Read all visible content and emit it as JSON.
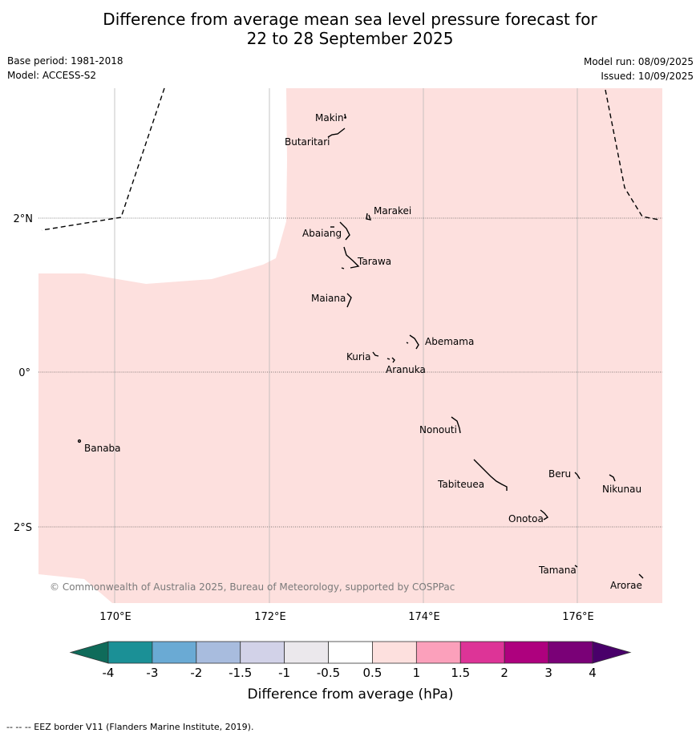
{
  "title_line1": "Difference from average mean sea level pressure forecast for",
  "title_line2": "22 to 28 September 2025",
  "base_period": "Base period: 1981-2018",
  "model": "Model: ACCESS-S2",
  "model_run": "Model run: 08/09/2025",
  "issued": "Issued: 10/09/2025",
  "lon_labels": [
    "170°E",
    "172°E",
    "174°E",
    "176°E"
  ],
  "lat_labels": [
    "2°N",
    "0°",
    "2°S"
  ],
  "islands": [
    "Makin",
    "Butaritari",
    "Marakei",
    "Abaiang",
    "Tarawa",
    "Maiana",
    "Abemama",
    "Kuria",
    "Aranuka",
    "Nonouti",
    "Banaba",
    "Beru",
    "Nikunau",
    "Tabiteuea",
    "Onotoa",
    "Tamana",
    "Arorae"
  ],
  "copyright": "© Commonwealth of Australia 2025, Bureau of Meteorology, supported by COSPPac",
  "colorbar": {
    "title": "Difference from average (hPa)",
    "ticks": [
      "-4",
      "-3",
      "-2",
      "-1.5",
      "-1",
      "-0.5",
      "0.5",
      "1",
      "1.5",
      "2",
      "3",
      "4"
    ],
    "colors": [
      "#1b9096",
      "#6aaad4",
      "#a8bcde",
      "#d2d2e8",
      "#ebe8ec",
      "#ffffff",
      "#fde0de",
      "#fba0bb",
      "#dd3497",
      "#ae017e",
      "#7a0177"
    ],
    "under_color": "#0f6b5a",
    "over_color": "#49006a"
  },
  "fill_color": "#fde0de",
  "footer": "--  --  -- EEZ border V11 (Flanders Marine Institute, 2019)."
}
